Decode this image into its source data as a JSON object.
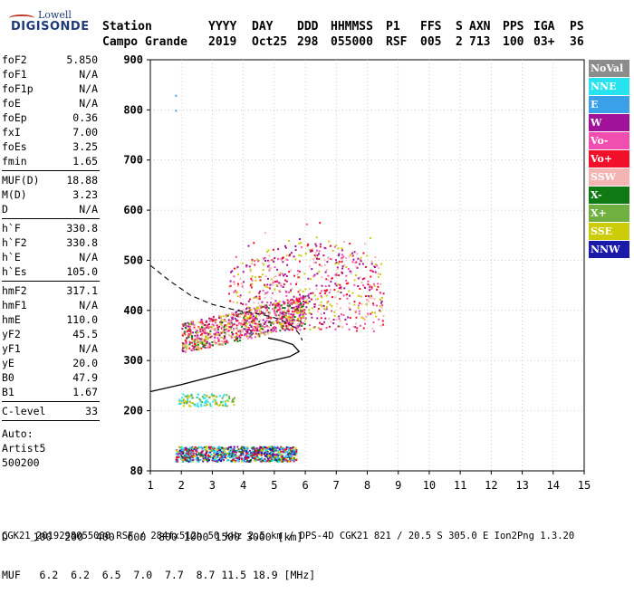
{
  "logo": {
    "top": "Lowell",
    "main": "DIGISONDE"
  },
  "header": {
    "labels": [
      "Station",
      "YYYY",
      "DAY",
      "DDD",
      "HHMMSS",
      "P1",
      "FFS",
      "S",
      "AXN",
      "PPS",
      "IGA",
      "PS"
    ],
    "values": [
      "Campo Grande",
      "2019",
      "Oct25",
      "298",
      "055000",
      "RSF",
      "005",
      "2",
      "713",
      "100",
      "03+",
      "36"
    ]
  },
  "params": {
    "group1": [
      [
        "foF2",
        "5.850"
      ],
      [
        "foF1",
        "N/A"
      ],
      [
        "foF1p",
        "N/A"
      ],
      [
        "foE",
        "N/A"
      ],
      [
        "foEp",
        "0.36"
      ],
      [
        "fxI",
        "7.00"
      ],
      [
        "foEs",
        "3.25"
      ],
      [
        "fmin",
        "1.65"
      ]
    ],
    "group2": [
      [
        "MUF(D)",
        "18.88"
      ],
      [
        "M(D)",
        "3.23"
      ],
      [
        "D",
        "N/A"
      ]
    ],
    "group3": [
      [
        "h`F",
        "330.8"
      ],
      [
        "h`F2",
        "330.8"
      ],
      [
        "h`E",
        "N/A"
      ],
      [
        "h`Es",
        "105.0"
      ]
    ],
    "group4": [
      [
        "hmF2",
        "317.1"
      ],
      [
        "hmF1",
        "N/A"
      ],
      [
        "hmE",
        "110.0"
      ],
      [
        "yF2",
        "45.5"
      ],
      [
        "yF1",
        "N/A"
      ],
      [
        "yE",
        "20.0"
      ],
      [
        "B0",
        "47.9"
      ],
      [
        "B1",
        "1.67"
      ]
    ],
    "group5": [
      [
        "C-level",
        "33"
      ]
    ],
    "auto": [
      "Auto:",
      "Artist5",
      "500200"
    ]
  },
  "legend": [
    {
      "label": "NoVal",
      "color": "#8c8c8c"
    },
    {
      "label": "NNE",
      "color": "#27e3f0"
    },
    {
      "label": "E",
      "color": "#3aa0e8"
    },
    {
      "label": "W",
      "color": "#a0129a"
    },
    {
      "label": "Vo-",
      "color": "#f04fb0"
    },
    {
      "label": "Vo+",
      "color": "#f0102a"
    },
    {
      "label": "SSW",
      "color": "#f5b4b4"
    },
    {
      "label": "X-",
      "color": "#0f7a14"
    },
    {
      "label": "X+",
      "color": "#6fb040"
    },
    {
      "label": "SSE",
      "color": "#cccc0a"
    },
    {
      "label": "NNW",
      "color": "#1a1aa8"
    }
  ],
  "bottom": {
    "d_row": "D    100  200  400  600  800 1000 1500 3000 [km]",
    "muf_row": "MUF   6.2  6.2  6.5  7.0  7.7  8.7 11.5 18.9 [MHz]"
  },
  "footer": "CGK21_2019298055000.RSF / 284fx512h 50 kHz 2.5 km / DPS-4D CGK21 821 / 20.5 S 305.0 E Ion2Png 1.3.20",
  "chart_data": {
    "type": "scatter",
    "xlim": [
      1,
      15
    ],
    "ylim": [
      80,
      900
    ],
    "xticks": [
      1,
      2,
      3,
      4,
      5,
      6,
      7,
      8,
      9,
      10,
      11,
      12,
      13,
      14,
      15
    ],
    "yticks": [
      80,
      200,
      300,
      400,
      500,
      600,
      700,
      800,
      900
    ],
    "grid": true,
    "clusters": [
      {
        "name": "E-Es layer",
        "x": [
          1.8,
          5.7
        ],
        "y": [
          100,
          130
        ],
        "colors": [
          "#27e3f0",
          "#3aa0e8",
          "#a0129a",
          "#f0102a",
          "#0f7a14",
          "#cccc0a",
          "#1a1aa8"
        ]
      },
      {
        "name": "F-layer O-trace",
        "x": [
          2.0,
          6.0
        ],
        "y": [
          315,
          420
        ],
        "colors": [
          "#f0102a",
          "#f04fb0",
          "#cccc0a",
          "#0f7a14",
          "#a0129a",
          "#f5b4b4"
        ]
      },
      {
        "name": "F-layer spread",
        "x": [
          3.5,
          8.5
        ],
        "y": [
          350,
          540
        ],
        "colors": [
          "#f5b4b4",
          "#a0129a",
          "#f04fb0",
          "#f0102a",
          "#cccc0a"
        ]
      },
      {
        "name": "Es multiple",
        "x": [
          1.9,
          3.7
        ],
        "y": [
          210,
          235
        ],
        "colors": [
          "#27e3f0",
          "#6fb040",
          "#cccc0a"
        ]
      }
    ],
    "profile_solid": [
      [
        1.0,
        238
      ],
      [
        2.0,
        252
      ],
      [
        3.0,
        268
      ],
      [
        4.0,
        284
      ],
      [
        4.8,
        298
      ],
      [
        5.5,
        308
      ],
      [
        5.8,
        318
      ],
      [
        5.6,
        332
      ],
      [
        5.2,
        340
      ],
      [
        4.8,
        345
      ]
    ],
    "profile_dashed": [
      [
        1.0,
        490
      ],
      [
        1.6,
        460
      ],
      [
        2.3,
        430
      ],
      [
        3.0,
        412
      ],
      [
        3.8,
        400
      ],
      [
        4.6,
        392
      ],
      [
        5.2,
        382
      ],
      [
        5.6,
        368
      ],
      [
        5.85,
        350
      ],
      [
        5.9,
        340
      ]
    ]
  }
}
